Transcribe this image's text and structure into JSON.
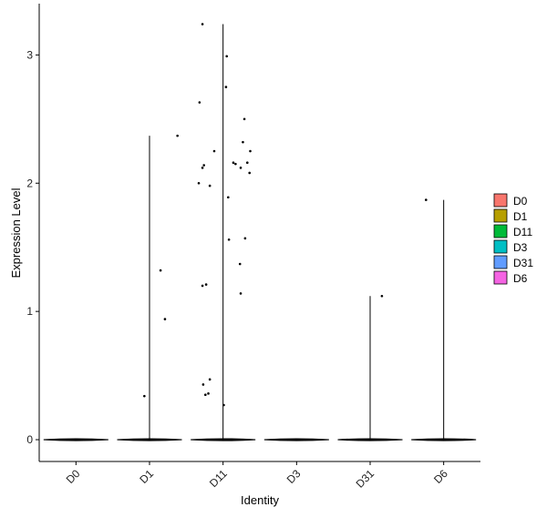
{
  "chart_data": {
    "type": "violin",
    "xlabel": "Identity",
    "ylabel": "Expression Level",
    "categories": [
      "D0",
      "D1",
      "D11",
      "D3",
      "D31",
      "D6"
    ],
    "ylim": [
      -0.17,
      3.4
    ],
    "yticks": [
      0,
      1,
      2,
      3
    ],
    "grid": false,
    "legend_position": "right",
    "legend": [
      {
        "label": "D0",
        "color": "#F8766D"
      },
      {
        "label": "D1",
        "color": "#B79F00"
      },
      {
        "label": "D11",
        "color": "#00BA38"
      },
      {
        "label": "D3",
        "color": "#00BFC4"
      },
      {
        "label": "D31",
        "color": "#619CFF"
      },
      {
        "label": "D6",
        "color": "#F564E3"
      }
    ],
    "violin_max": [
      0,
      2.37,
      3.24,
      0,
      1.12,
      1.87
    ],
    "points": [
      {
        "category": "D1",
        "x_offset": -0.07,
        "y": 0.34
      },
      {
        "category": "D1",
        "x_offset": 0.15,
        "y": 1.32
      },
      {
        "category": "D1",
        "x_offset": 0.21,
        "y": 0.94
      },
      {
        "category": "D1",
        "x_offset": 0.38,
        "y": 2.37
      },
      {
        "category": "D11",
        "x_offset": -0.32,
        "y": 2.63
      },
      {
        "category": "D11",
        "x_offset": -0.33,
        "y": 2.0
      },
      {
        "category": "D11",
        "x_offset": -0.28,
        "y": 2.12
      },
      {
        "category": "D11",
        "x_offset": -0.26,
        "y": 2.14
      },
      {
        "category": "D11",
        "x_offset": -0.18,
        "y": 1.98
      },
      {
        "category": "D11",
        "x_offset": -0.12,
        "y": 2.25
      },
      {
        "category": "D11",
        "x_offset": -0.28,
        "y": 1.2
      },
      {
        "category": "D11",
        "x_offset": -0.23,
        "y": 1.21
      },
      {
        "category": "D11",
        "x_offset": -0.27,
        "y": 0.43
      },
      {
        "category": "D11",
        "x_offset": -0.24,
        "y": 0.35
      },
      {
        "category": "D11",
        "x_offset": -0.2,
        "y": 0.36
      },
      {
        "category": "D11",
        "x_offset": -0.18,
        "y": 0.47
      },
      {
        "category": "D11",
        "x_offset": -0.28,
        "y": 3.24
      },
      {
        "category": "D11",
        "x_offset": 0.05,
        "y": 2.99
      },
      {
        "category": "D11",
        "x_offset": 0.04,
        "y": 2.75
      },
      {
        "category": "D11",
        "x_offset": 0.29,
        "y": 2.5
      },
      {
        "category": "D11",
        "x_offset": 0.27,
        "y": 2.32
      },
      {
        "category": "D11",
        "x_offset": 0.37,
        "y": 2.25
      },
      {
        "category": "D11",
        "x_offset": 0.33,
        "y": 2.16
      },
      {
        "category": "D11",
        "x_offset": 0.14,
        "y": 2.16
      },
      {
        "category": "D11",
        "x_offset": 0.17,
        "y": 2.15
      },
      {
        "category": "D11",
        "x_offset": 0.24,
        "y": 2.12
      },
      {
        "category": "D11",
        "x_offset": 0.36,
        "y": 2.08
      },
      {
        "category": "D11",
        "x_offset": 0.07,
        "y": 1.89
      },
      {
        "category": "D11",
        "x_offset": 0.3,
        "y": 1.57
      },
      {
        "category": "D11",
        "x_offset": 0.08,
        "y": 1.56
      },
      {
        "category": "D11",
        "x_offset": 0.23,
        "y": 1.37
      },
      {
        "category": "D11",
        "x_offset": 0.24,
        "y": 1.14
      },
      {
        "category": "D11",
        "x_offset": 0.01,
        "y": 0.27
      },
      {
        "category": "D31",
        "x_offset": 0.16,
        "y": 1.12
      },
      {
        "category": "D6",
        "x_offset": -0.24,
        "y": 1.87
      }
    ]
  }
}
